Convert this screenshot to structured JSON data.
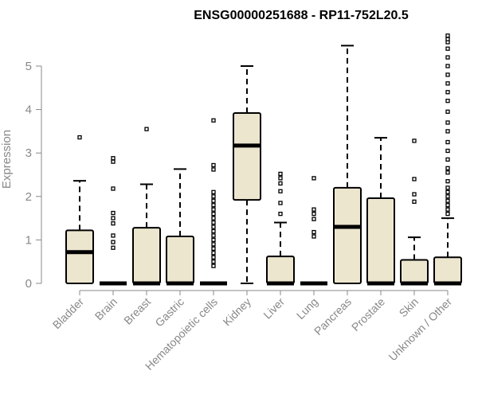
{
  "chart_data": {
    "type": "box",
    "title": "ENSG00000251688 - RP11-752L20.5",
    "xlabel": "",
    "ylabel": "Expression",
    "ylim": [
      0,
      5.7
    ],
    "yticks": [
      0,
      1,
      2,
      3,
      4,
      5
    ],
    "box_fill": "#ede6cf",
    "categories": [
      "Bladder",
      "Brain",
      "Breast",
      "Gastric",
      "Hematopoietic cells",
      "Kidney",
      "Liver",
      "Lung",
      "Pancreas",
      "Prostate",
      "Skin",
      "Unknown / Other"
    ],
    "boxes": [
      {
        "label": "Bladder",
        "q1": 0,
        "median": 0.72,
        "q3": 1.22,
        "whisker_low": 0,
        "whisker_high": 2.36,
        "outliers": [
          3.36
        ]
      },
      {
        "label": "Brain",
        "q1": 0,
        "median": 0,
        "q3": 0,
        "whisker_low": 0,
        "whisker_high": 0,
        "outliers": [
          0.82,
          0.95,
          1.1,
          1.38,
          1.5,
          1.62,
          2.18,
          2.8,
          2.88
        ]
      },
      {
        "label": "Breast",
        "q1": 0,
        "median": 0,
        "q3": 1.28,
        "whisker_low": 0,
        "whisker_high": 2.28,
        "outliers": [
          3.55
        ]
      },
      {
        "label": "Gastric",
        "q1": 0,
        "median": 0,
        "q3": 1.08,
        "whisker_low": 0,
        "whisker_high": 2.63,
        "outliers": []
      },
      {
        "label": "Hematopoietic cells",
        "q1": 0,
        "median": 0,
        "q3": 0,
        "whisker_low": 0,
        "whisker_high": 0,
        "outliers": [
          0.4,
          0.5,
          0.6,
          0.7,
          0.8,
          0.9,
          1.0,
          1.1,
          1.2,
          1.3,
          1.4,
          1.5,
          1.6,
          1.7,
          1.8,
          1.9,
          2.0,
          2.1,
          2.62,
          2.72,
          3.75
        ]
      },
      {
        "label": "Kidney",
        "q1": 1.92,
        "median": 3.17,
        "q3": 3.92,
        "whisker_low": 0,
        "whisker_high": 5.0,
        "outliers": []
      },
      {
        "label": "Liver",
        "q1": 0,
        "median": 0,
        "q3": 0.62,
        "whisker_low": 0,
        "whisker_high": 1.4,
        "outliers": [
          1.6,
          1.85,
          2.12,
          2.3,
          2.42,
          2.52
        ]
      },
      {
        "label": "Lung",
        "q1": 0,
        "median": 0,
        "q3": 0,
        "whisker_low": 0,
        "whisker_high": 0,
        "outliers": [
          1.08,
          1.18,
          1.48,
          1.6,
          1.7,
          2.42
        ]
      },
      {
        "label": "Pancreas",
        "q1": 0,
        "median": 1.3,
        "q3": 2.2,
        "whisker_low": 0,
        "whisker_high": 5.47,
        "outliers": []
      },
      {
        "label": "Prostate",
        "q1": 0,
        "median": 0,
        "q3": 1.96,
        "whisker_low": 0,
        "whisker_high": 3.35,
        "outliers": []
      },
      {
        "label": "Skin",
        "q1": 0,
        "median": 0,
        "q3": 0.54,
        "whisker_low": 0,
        "whisker_high": 1.06,
        "outliers": [
          1.88,
          2.05,
          2.4,
          3.28
        ]
      },
      {
        "label": "Unknown / Other",
        "q1": 0,
        "median": 0,
        "q3": 0.6,
        "whisker_low": 0,
        "whisker_high": 1.5,
        "outliers": [
          1.6,
          1.7,
          1.8,
          1.9,
          2.0,
          2.1,
          2.2,
          2.35,
          2.55,
          2.65,
          2.85,
          3.05,
          3.25,
          3.5,
          3.7,
          3.95,
          4.2,
          4.4,
          4.6,
          4.8,
          5.0,
          5.2,
          5.4,
          5.55,
          5.62,
          5.7
        ]
      }
    ]
  }
}
